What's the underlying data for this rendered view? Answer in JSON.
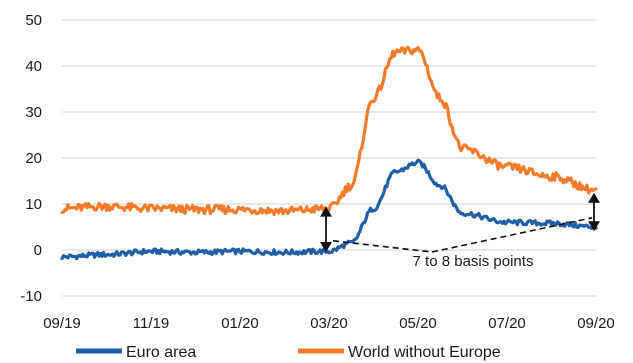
{
  "chart_data": {
    "type": "line",
    "title": "",
    "xlabel": "",
    "ylabel": "",
    "ylim": [
      -10,
      50
    ],
    "yticks": [
      -10,
      0,
      10,
      20,
      30,
      40,
      50
    ],
    "xlim": [
      "2019-09",
      "2020-09"
    ],
    "xticks": [
      "09/19",
      "11/19",
      "01/20",
      "03/20",
      "05/20",
      "07/20",
      "09/20"
    ],
    "grid": "horizontal",
    "legend_position": "bottom",
    "x": [
      "09/19",
      "10/19",
      "11/19",
      "12/19",
      "01/20",
      "02/20",
      "03/20",
      "03/20",
      "04/20",
      "04/20",
      "05/20",
      "05/20",
      "06/20",
      "07/20",
      "08/20",
      "09/20"
    ],
    "series": [
      {
        "name": "Euro area",
        "color": "#1f5fa8",
        "values": [
          -1.5,
          -1,
          -0.3,
          -0.5,
          -0.3,
          -0.5,
          -0.3,
          1.5,
          9,
          17,
          19,
          14,
          8,
          6,
          5.8,
          5
        ]
      },
      {
        "name": "World without Europe",
        "color": "#f47b2a",
        "values": [
          9,
          9.5,
          9,
          8.8,
          8.8,
          8.5,
          9,
          14,
          33,
          43,
          43.5,
          33,
          22,
          18,
          16,
          13
        ]
      }
    ],
    "annotations": [
      {
        "text": "7 to 8 basis points"
      }
    ]
  }
}
